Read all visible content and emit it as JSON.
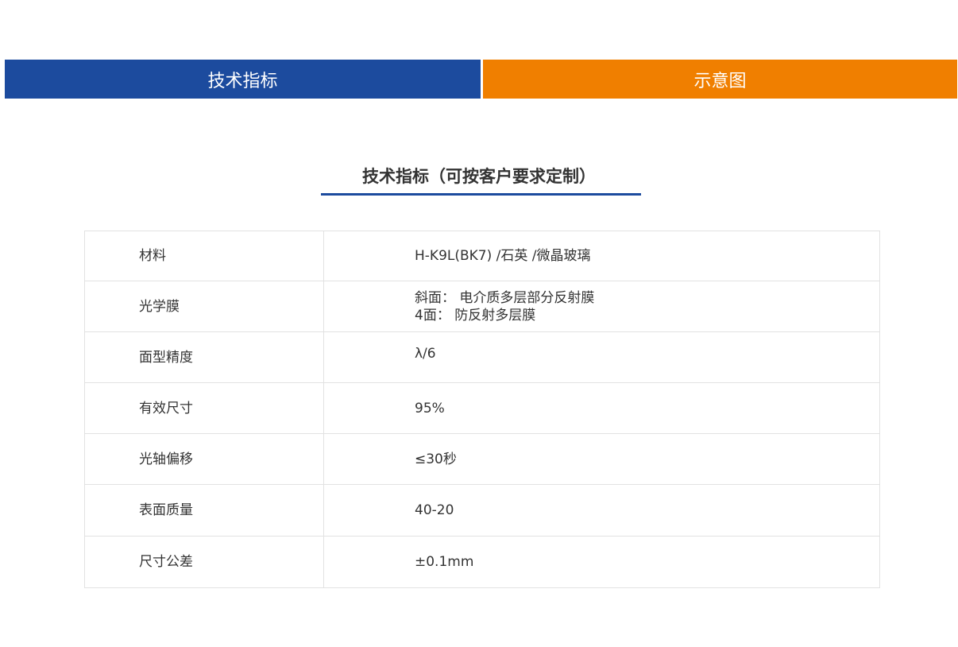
{
  "tabs": [
    {
      "label": "技术指标",
      "color": "#1c4b9e"
    },
    {
      "label": "示意图",
      "color": "#f07f00"
    }
  ],
  "section_title": "技术指标（可按客户要求定制）",
  "rows": [
    {
      "label": "材料",
      "value": "H-K9L(BK7) /石英 /微晶玻璃"
    },
    {
      "label": "光学膜",
      "value": "斜面： 电介质多层部分反射膜",
      "value2": "4面： 防反射多层膜"
    },
    {
      "label": "面型精度",
      "value": "λ/6"
    },
    {
      "label": "有效尺寸",
      "value": "95%"
    },
    {
      "label": "光轴偏移",
      "value": "≤30秒"
    },
    {
      "label": "表面质量",
      "value": "40-20"
    },
    {
      "label": "尺寸公差",
      "value": "±0.1mm"
    }
  ]
}
